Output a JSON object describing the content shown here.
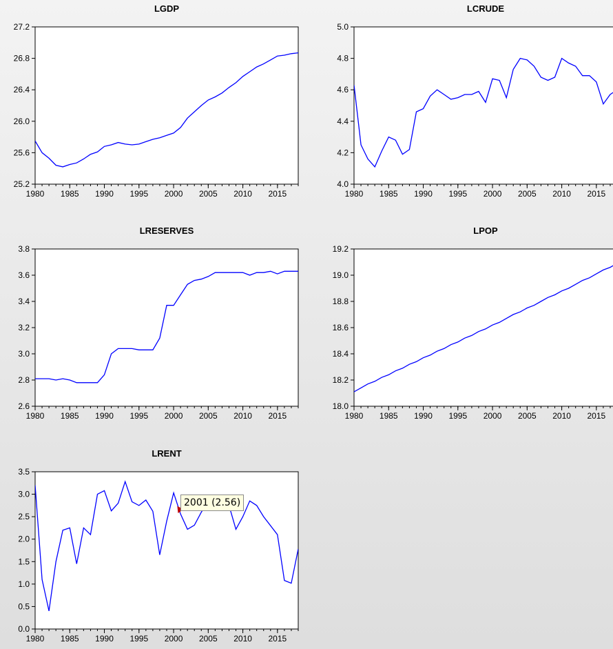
{
  "chart_data": [
    {
      "type": "line",
      "title": "LGDP",
      "xlim": [
        1980,
        2018
      ],
      "ylim": [
        25.2,
        27.2
      ],
      "yticks": [
        "25.2",
        "25.6",
        "26.0",
        "26.4",
        "26.8",
        "27.2"
      ],
      "xticks": [
        "1980",
        "1985",
        "1990",
        "1995",
        "2000",
        "2005",
        "2010",
        "2015"
      ],
      "x": [
        1980,
        1981,
        1982,
        1983,
        1984,
        1985,
        1986,
        1987,
        1988,
        1989,
        1990,
        1991,
        1992,
        1993,
        1994,
        1995,
        1996,
        1997,
        1998,
        1999,
        2000,
        2001,
        2002,
        2003,
        2004,
        2005,
        2006,
        2007,
        2008,
        2009,
        2010,
        2011,
        2012,
        2013,
        2014,
        2015,
        2016,
        2017,
        2018
      ],
      "values": [
        25.75,
        25.6,
        25.53,
        25.44,
        25.42,
        25.45,
        25.47,
        25.52,
        25.58,
        25.61,
        25.68,
        25.7,
        25.73,
        25.71,
        25.7,
        25.71,
        25.74,
        25.77,
        25.79,
        25.82,
        25.85,
        25.92,
        26.04,
        26.12,
        26.2,
        26.27,
        26.31,
        26.36,
        26.43,
        26.49,
        26.57,
        26.63,
        26.69,
        26.73,
        26.78,
        26.83,
        26.84,
        26.86,
        26.87
      ],
      "color": "#0000ff"
    },
    {
      "type": "line",
      "title": "LCRUDE",
      "xlim": [
        1980,
        2018
      ],
      "ylim": [
        4.0,
        5.0
      ],
      "yticks": [
        "4.0",
        "4.2",
        "4.4",
        "4.6",
        "4.8",
        "5.0"
      ],
      "xticks": [
        "1980",
        "1985",
        "1990",
        "1995",
        "2000",
        "2005",
        "2010",
        "2015"
      ],
      "x": [
        1980,
        1981,
        1982,
        1983,
        1984,
        1985,
        1986,
        1987,
        1988,
        1989,
        1990,
        1991,
        1992,
        1993,
        1994,
        1995,
        1996,
        1997,
        1998,
        1999,
        2000,
        2001,
        2002,
        2003,
        2004,
        2005,
        2006,
        2007,
        2008,
        2009,
        2010,
        2011,
        2012,
        2013,
        2014,
        2015,
        2016,
        2017,
        2018
      ],
      "values": [
        4.63,
        4.25,
        4.16,
        4.11,
        4.21,
        4.3,
        4.28,
        4.19,
        4.22,
        4.46,
        4.48,
        4.56,
        4.6,
        4.57,
        4.54,
        4.55,
        4.57,
        4.57,
        4.59,
        4.52,
        4.67,
        4.66,
        4.55,
        4.73,
        4.8,
        4.79,
        4.75,
        4.68,
        4.66,
        4.68,
        4.8,
        4.77,
        4.75,
        4.69,
        4.69,
        4.65,
        4.51,
        4.57,
        4.6
      ],
      "color": "#0000ff"
    },
    {
      "type": "line",
      "title": "LRESERVES",
      "xlim": [
        1980,
        2018
      ],
      "ylim": [
        2.6,
        3.8
      ],
      "yticks": [
        "2.6",
        "2.8",
        "3.0",
        "3.2",
        "3.4",
        "3.6",
        "3.8"
      ],
      "xticks": [
        "1980",
        "1985",
        "1990",
        "1995",
        "2000",
        "2005",
        "2010",
        "2015"
      ],
      "x": [
        1980,
        1981,
        1982,
        1983,
        1984,
        1985,
        1986,
        1987,
        1988,
        1989,
        1990,
        1991,
        1992,
        1993,
        1994,
        1995,
        1996,
        1997,
        1998,
        1999,
        2000,
        2001,
        2002,
        2003,
        2004,
        2005,
        2006,
        2007,
        2008,
        2009,
        2010,
        2011,
        2012,
        2013,
        2014,
        2015,
        2016,
        2017,
        2018
      ],
      "values": [
        2.81,
        2.81,
        2.81,
        2.8,
        2.81,
        2.8,
        2.78,
        2.78,
        2.78,
        2.78,
        2.84,
        3.0,
        3.04,
        3.04,
        3.04,
        3.03,
        3.03,
        3.03,
        3.12,
        3.37,
        3.37,
        3.45,
        3.53,
        3.56,
        3.57,
        3.59,
        3.62,
        3.62,
        3.62,
        3.62,
        3.62,
        3.6,
        3.62,
        3.62,
        3.63,
        3.61,
        3.63,
        3.63,
        3.63
      ],
      "color": "#0000ff"
    },
    {
      "type": "line",
      "title": "LPOP",
      "xlim": [
        1980,
        2018
      ],
      "ylim": [
        18.0,
        19.2
      ],
      "yticks": [
        "18.0",
        "18.2",
        "18.4",
        "18.6",
        "18.8",
        "19.0",
        "19.2"
      ],
      "xticks": [
        "1980",
        "1985",
        "1990",
        "1995",
        "2000",
        "2005",
        "2010",
        "2015"
      ],
      "x": [
        1980,
        1981,
        1982,
        1983,
        1984,
        1985,
        1986,
        1987,
        1988,
        1989,
        1990,
        1991,
        1992,
        1993,
        1994,
        1995,
        1996,
        1997,
        1998,
        1999,
        2000,
        2001,
        2002,
        2003,
        2004,
        2005,
        2006,
        2007,
        2008,
        2009,
        2010,
        2011,
        2012,
        2013,
        2014,
        2015,
        2016,
        2017,
        2018
      ],
      "values": [
        18.11,
        18.14,
        18.17,
        18.19,
        18.22,
        18.24,
        18.27,
        18.29,
        18.32,
        18.34,
        18.37,
        18.39,
        18.42,
        18.44,
        18.47,
        18.49,
        18.52,
        18.54,
        18.57,
        18.59,
        18.62,
        18.64,
        18.67,
        18.7,
        18.72,
        18.75,
        18.77,
        18.8,
        18.83,
        18.85,
        18.88,
        18.9,
        18.93,
        18.96,
        18.98,
        19.01,
        19.04,
        19.06,
        19.09
      ],
      "color": "#0000ff"
    },
    {
      "type": "line",
      "title": "LRENT",
      "xlim": [
        1980,
        2018
      ],
      "ylim": [
        0.0,
        3.5
      ],
      "yticks": [
        "0.0",
        "0.5",
        "1.0",
        "1.5",
        "2.0",
        "2.5",
        "3.0",
        "3.5"
      ],
      "xticks": [
        "1980",
        "1985",
        "1990",
        "1995",
        "2000",
        "2005",
        "2010",
        "2015"
      ],
      "x": [
        1980,
        1981,
        1982,
        1983,
        1984,
        1985,
        1986,
        1987,
        1988,
        1989,
        1990,
        1991,
        1992,
        1993,
        1994,
        1995,
        1996,
        1997,
        1998,
        1999,
        2000,
        2001,
        2002,
        2003,
        2004,
        2005,
        2006,
        2007,
        2008,
        2009,
        2010,
        2011,
        2012,
        2013,
        2014,
        2015,
        2016,
        2017,
        2018
      ],
      "values": [
        3.2,
        1.1,
        0.4,
        1.5,
        2.2,
        2.25,
        1.45,
        2.25,
        2.1,
        3.0,
        3.08,
        2.63,
        2.8,
        3.28,
        2.83,
        2.75,
        2.87,
        2.62,
        1.65,
        2.4,
        3.03,
        2.56,
        2.22,
        2.31,
        2.6,
        2.85,
        2.95,
        2.85,
        2.75,
        2.22,
        2.5,
        2.85,
        2.75,
        2.5,
        2.3,
        2.1,
        1.08,
        1.02,
        1.78
      ],
      "color": "#0000ff"
    }
  ],
  "tooltip": {
    "text": "2001 (2.56)"
  }
}
